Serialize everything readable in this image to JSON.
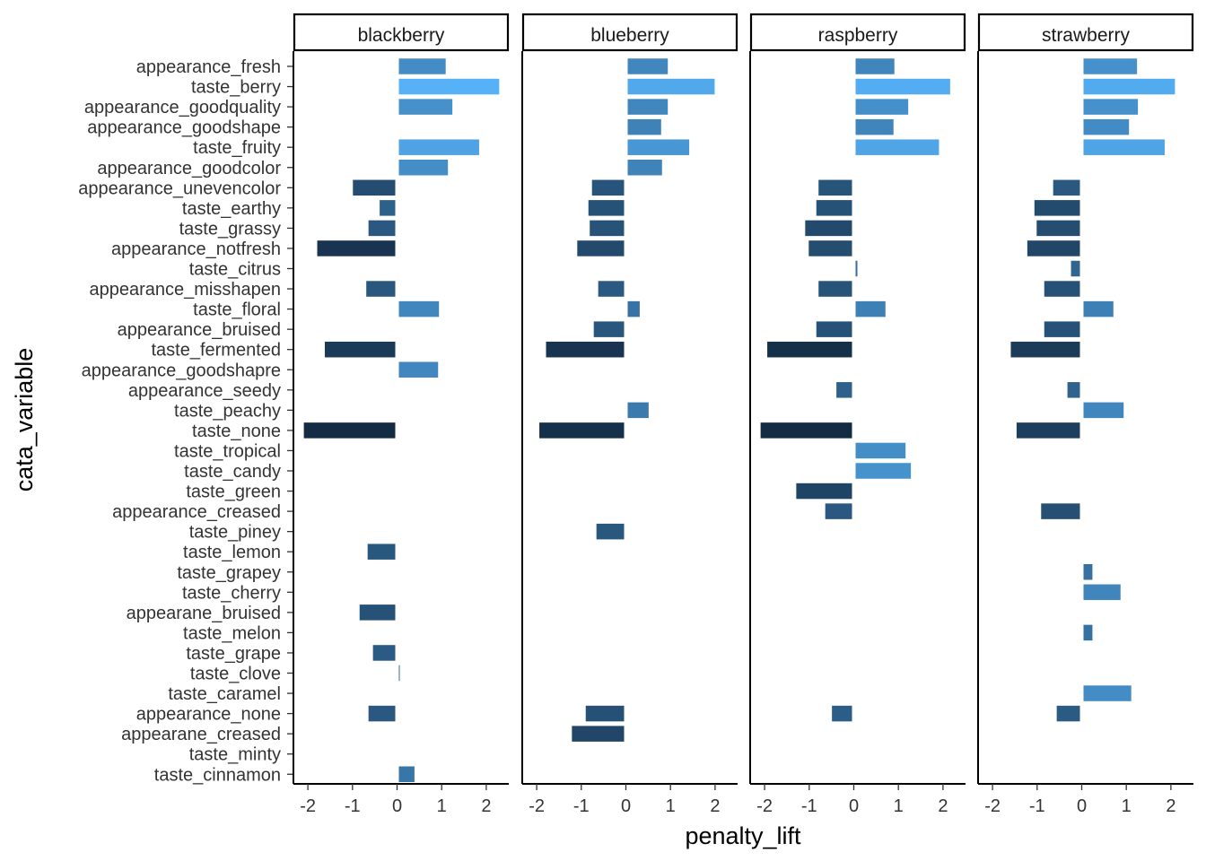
{
  "chart_data": {
    "type": "bar",
    "orientation": "horizontal",
    "facet_by": "fruit",
    "xlabel": "penalty_lift",
    "ylabel": "cata_variable",
    "xlim": [
      -2.2,
      2.4
    ],
    "xticks": [
      -2,
      -1,
      0,
      1,
      2
    ],
    "xtick_labels": [
      "-2",
      "-1",
      "0",
      "1",
      "2"
    ],
    "grid": false,
    "legend": "none",
    "color_scale": {
      "low": "#132B43",
      "high": "#56B1F7"
    },
    "facets": [
      "blackberry",
      "blueberry",
      "raspberry",
      "strawberry"
    ],
    "categories": [
      "appearance_fresh",
      "taste_berry",
      "appearance_goodquality",
      "appearance_goodshape",
      "taste_fruity",
      "appearance_goodcolor",
      "appearance_unevencolor",
      "taste_earthy",
      "taste_grassy",
      "appearance_notfresh",
      "taste_citrus",
      "appearance_misshapen",
      "taste_floral",
      "appearance_bruised",
      "taste_fermented",
      "appearance_goodshapre",
      "appearance_seedy",
      "taste_peachy",
      "taste_none",
      "taste_tropical",
      "taste_candy",
      "taste_green",
      "appearance_creased",
      "taste_piney",
      "taste_lemon",
      "taste_grapey",
      "taste_cherry",
      "appearane_bruised",
      "taste_melon",
      "taste_grape",
      "taste_clove",
      "taste_caramel",
      "appearance_none",
      "appearane_creased",
      "taste_minty",
      "taste_cinnamon"
    ],
    "series": [
      {
        "name": "blackberry",
        "values": [
          1.05,
          2.25,
          1.2,
          null,
          1.8,
          1.1,
          -0.95,
          -0.35,
          -0.6,
          -1.75,
          null,
          -0.65,
          0.9,
          null,
          -1.58,
          0.88,
          null,
          null,
          -2.05,
          null,
          null,
          null,
          null,
          null,
          -0.62,
          null,
          null,
          -0.8,
          null,
          -0.5,
          0.02,
          null,
          -0.6,
          null,
          null,
          0.35
        ]
      },
      {
        "name": "blueberry",
        "values": [
          0.9,
          1.95,
          0.9,
          0.75,
          1.38,
          0.77,
          -0.72,
          -0.8,
          -0.77,
          -1.05,
          null,
          -0.58,
          0.27,
          -0.68,
          -1.75,
          null,
          null,
          0.47,
          -1.9,
          null,
          null,
          null,
          null,
          -0.62,
          null,
          null,
          null,
          null,
          null,
          null,
          null,
          null,
          -0.86,
          -1.17,
          null,
          null
        ]
      },
      {
        "name": "raspberry",
        "values": [
          0.87,
          2.12,
          1.18,
          0.85,
          1.87,
          null,
          -0.75,
          -0.8,
          -1.05,
          -0.97,
          0.04,
          -0.75,
          0.67,
          -0.8,
          -1.9,
          null,
          -0.35,
          null,
          -2.05,
          1.12,
          1.24,
          -1.25,
          -0.6,
          null,
          null,
          null,
          null,
          null,
          null,
          null,
          null,
          null,
          -0.45,
          null,
          null,
          null
        ]
      },
      {
        "name": "strawberry",
        "values": [
          1.2,
          2.05,
          1.22,
          1.02,
          1.82,
          null,
          -0.6,
          -1.02,
          -0.97,
          -1.18,
          -0.2,
          -0.8,
          0.67,
          -0.8,
          -1.55,
          null,
          -0.28,
          0.9,
          -1.42,
          null,
          null,
          null,
          -0.87,
          null,
          null,
          0.2,
          0.83,
          null,
          0.2,
          null,
          null,
          1.07,
          -0.52,
          null,
          null,
          null
        ]
      }
    ]
  }
}
